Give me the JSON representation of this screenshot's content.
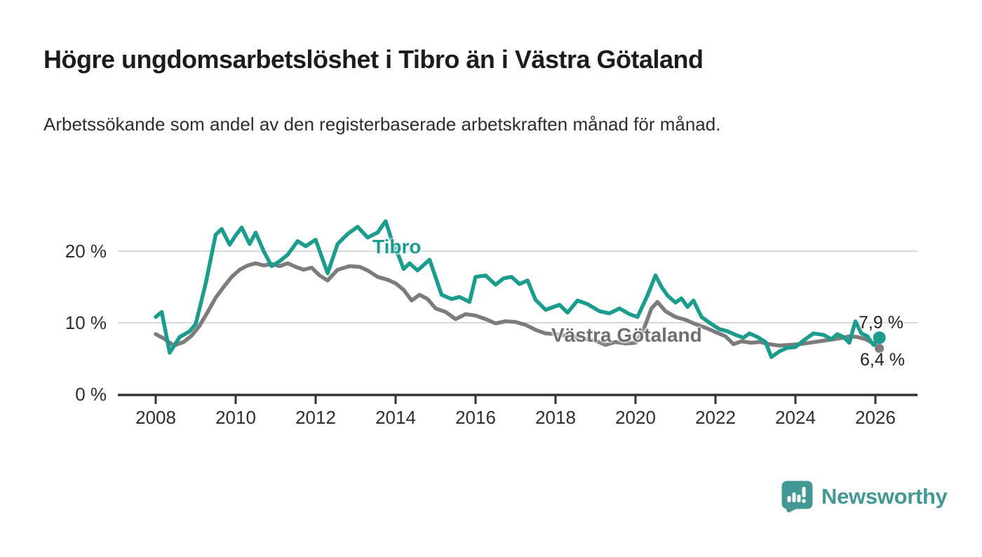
{
  "title": "Högre ungdomsarbetslöshet i Tibro än i Västra Götaland",
  "subtitle": "Arbetssökande som andel av den registerbaserade arbetskraften månad för månad.",
  "brand": {
    "name": "Newsworthy",
    "icon": "newsworthy-speech-bubble-bar-chart-icon",
    "color": "#449893"
  },
  "colors": {
    "tibro_line": "#1b9c8d",
    "vastra_gotaland_line": "#7c7c7c",
    "vastra_gotaland_label": "#6f6f6f",
    "gridline": "#d8d8d8",
    "axis": "#333333",
    "title_text": "#1c1c1c",
    "body_text": "#2d2d2d",
    "annotation_text": "#222222",
    "background": "#ffffff"
  },
  "chart_data": {
    "type": "line",
    "title": "Högre ungdomsarbetslöshet i Tibro än i Västra Götaland",
    "subtitle": "Arbetssökande som andel av den registerbaserade arbetskraften månad för månad.",
    "unit": "%",
    "grid": "horizontal",
    "legend_position": "inline-labels",
    "x_axis": {
      "ticks": [
        2008,
        2010,
        2012,
        2014,
        2016,
        2018,
        2020,
        2022,
        2024,
        2026
      ],
      "range": [
        2007.0,
        2027.0
      ]
    },
    "y_axis": {
      "ticks": [
        0,
        10,
        20
      ],
      "tick_labels": [
        "0 %",
        "10 %",
        "20 %"
      ],
      "range": [
        0,
        25.5
      ]
    },
    "series": [
      {
        "name": "Västra Götaland",
        "color": "#7c7c7c",
        "end_value": 6.4,
        "end_label": "6,4 %",
        "points": [
          [
            2008.0,
            8.4
          ],
          [
            2008.2,
            7.8
          ],
          [
            2008.45,
            6.8
          ],
          [
            2008.7,
            7.3
          ],
          [
            2008.9,
            8.2
          ],
          [
            2009.1,
            9.6
          ],
          [
            2009.3,
            11.5
          ],
          [
            2009.5,
            13.5
          ],
          [
            2009.7,
            15.0
          ],
          [
            2009.9,
            16.4
          ],
          [
            2010.1,
            17.4
          ],
          [
            2010.3,
            18.0
          ],
          [
            2010.5,
            18.3
          ],
          [
            2010.7,
            18.0
          ],
          [
            2010.9,
            18.2
          ],
          [
            2011.1,
            17.9
          ],
          [
            2011.3,
            18.3
          ],
          [
            2011.5,
            17.8
          ],
          [
            2011.7,
            17.4
          ],
          [
            2011.9,
            17.7
          ],
          [
            2012.1,
            16.6
          ],
          [
            2012.3,
            15.9
          ],
          [
            2012.55,
            17.4
          ],
          [
            2012.85,
            17.9
          ],
          [
            2013.1,
            17.8
          ],
          [
            2013.3,
            17.3
          ],
          [
            2013.55,
            16.4
          ],
          [
            2013.8,
            16.0
          ],
          [
            2014.0,
            15.5
          ],
          [
            2014.2,
            14.6
          ],
          [
            2014.4,
            13.1
          ],
          [
            2014.6,
            13.9
          ],
          [
            2014.8,
            13.3
          ],
          [
            2015.0,
            12.0
          ],
          [
            2015.25,
            11.5
          ],
          [
            2015.5,
            10.5
          ],
          [
            2015.75,
            11.2
          ],
          [
            2016.0,
            11.0
          ],
          [
            2016.25,
            10.5
          ],
          [
            2016.5,
            9.9
          ],
          [
            2016.75,
            10.2
          ],
          [
            2017.0,
            10.1
          ],
          [
            2017.25,
            9.7
          ],
          [
            2017.5,
            9.0
          ],
          [
            2017.75,
            8.5
          ],
          [
            2018.0,
            8.4
          ],
          [
            2018.25,
            8.2
          ],
          [
            2018.5,
            8.0
          ],
          [
            2018.75,
            7.7
          ],
          [
            2019.0,
            7.5
          ],
          [
            2019.25,
            6.9
          ],
          [
            2019.5,
            7.3
          ],
          [
            2019.75,
            7.1
          ],
          [
            2020.0,
            7.2
          ],
          [
            2020.2,
            9.0
          ],
          [
            2020.4,
            12.0
          ],
          [
            2020.55,
            12.9
          ],
          [
            2020.75,
            11.6
          ],
          [
            2021.0,
            10.8
          ],
          [
            2021.25,
            10.4
          ],
          [
            2021.5,
            9.8
          ],
          [
            2021.75,
            9.3
          ],
          [
            2022.0,
            8.7
          ],
          [
            2022.25,
            8.1
          ],
          [
            2022.45,
            7.0
          ],
          [
            2022.65,
            7.4
          ],
          [
            2022.9,
            7.2
          ],
          [
            2023.1,
            7.3
          ],
          [
            2023.35,
            7.0
          ],
          [
            2023.6,
            6.8
          ],
          [
            2023.85,
            6.9
          ],
          [
            2024.1,
            7.0
          ],
          [
            2024.35,
            7.2
          ],
          [
            2024.6,
            7.4
          ],
          [
            2024.85,
            7.6
          ],
          [
            2025.1,
            7.8
          ],
          [
            2025.35,
            8.1
          ],
          [
            2025.55,
            8.0
          ],
          [
            2025.75,
            7.7
          ],
          [
            2025.95,
            7.1
          ],
          [
            2026.1,
            6.4
          ]
        ]
      },
      {
        "name": "Tibro",
        "color": "#1b9c8d",
        "end_value": 7.9,
        "end_label": "7,9 %",
        "points": [
          [
            2008.0,
            10.8
          ],
          [
            2008.15,
            11.5
          ],
          [
            2008.35,
            5.8
          ],
          [
            2008.6,
            8.0
          ],
          [
            2008.85,
            8.8
          ],
          [
            2009.0,
            9.8
          ],
          [
            2009.25,
            15.5
          ],
          [
            2009.5,
            22.3
          ],
          [
            2009.65,
            23.1
          ],
          [
            2009.85,
            20.9
          ],
          [
            2010.0,
            22.2
          ],
          [
            2010.15,
            23.3
          ],
          [
            2010.35,
            21.0
          ],
          [
            2010.5,
            22.6
          ],
          [
            2010.7,
            20.0
          ],
          [
            2010.9,
            17.9
          ],
          [
            2011.1,
            18.6
          ],
          [
            2011.3,
            19.5
          ],
          [
            2011.55,
            21.4
          ],
          [
            2011.75,
            20.7
          ],
          [
            2012.0,
            21.6
          ],
          [
            2012.3,
            16.9
          ],
          [
            2012.55,
            21.0
          ],
          [
            2012.8,
            22.4
          ],
          [
            2013.05,
            23.4
          ],
          [
            2013.3,
            21.9
          ],
          [
            2013.55,
            22.6
          ],
          [
            2013.75,
            24.2
          ],
          [
            2013.9,
            21.6
          ],
          [
            2014.1,
            19.0
          ],
          [
            2014.2,
            17.5
          ],
          [
            2014.35,
            18.3
          ],
          [
            2014.55,
            17.3
          ],
          [
            2014.85,
            18.8
          ],
          [
            2015.15,
            13.9
          ],
          [
            2015.4,
            13.3
          ],
          [
            2015.6,
            13.6
          ],
          [
            2015.85,
            12.9
          ],
          [
            2016.0,
            16.4
          ],
          [
            2016.25,
            16.6
          ],
          [
            2016.5,
            15.3
          ],
          [
            2016.7,
            16.2
          ],
          [
            2016.9,
            16.4
          ],
          [
            2017.1,
            15.4
          ],
          [
            2017.3,
            15.9
          ],
          [
            2017.5,
            13.2
          ],
          [
            2017.75,
            11.8
          ],
          [
            2018.1,
            12.5
          ],
          [
            2018.3,
            11.4
          ],
          [
            2018.55,
            13.1
          ],
          [
            2018.8,
            12.6
          ],
          [
            2019.1,
            11.6
          ],
          [
            2019.35,
            11.3
          ],
          [
            2019.6,
            12.0
          ],
          [
            2019.85,
            11.2
          ],
          [
            2020.05,
            10.8
          ],
          [
            2020.3,
            13.8
          ],
          [
            2020.5,
            16.6
          ],
          [
            2020.65,
            15.0
          ],
          [
            2020.8,
            13.8
          ],
          [
            2021.0,
            12.8
          ],
          [
            2021.15,
            13.4
          ],
          [
            2021.3,
            12.2
          ],
          [
            2021.45,
            13.1
          ],
          [
            2021.65,
            10.8
          ],
          [
            2021.85,
            10.0
          ],
          [
            2022.1,
            9.1
          ],
          [
            2022.3,
            8.8
          ],
          [
            2022.5,
            8.3
          ],
          [
            2022.7,
            7.9
          ],
          [
            2022.85,
            8.5
          ],
          [
            2023.05,
            8.0
          ],
          [
            2023.25,
            7.3
          ],
          [
            2023.4,
            5.2
          ],
          [
            2023.6,
            6.0
          ],
          [
            2023.8,
            6.5
          ],
          [
            2024.0,
            6.6
          ],
          [
            2024.2,
            7.5
          ],
          [
            2024.45,
            8.5
          ],
          [
            2024.7,
            8.3
          ],
          [
            2024.9,
            7.7
          ],
          [
            2025.05,
            8.4
          ],
          [
            2025.2,
            8.0
          ],
          [
            2025.35,
            7.2
          ],
          [
            2025.5,
            10.2
          ],
          [
            2025.65,
            8.5
          ],
          [
            2025.8,
            8.1
          ],
          [
            2025.95,
            6.9
          ],
          [
            2026.1,
            7.9
          ]
        ]
      }
    ],
    "annotations": [
      {
        "text": "Tibro",
        "series": "Tibro",
        "color": "#1b9c8d"
      },
      {
        "text": "Västra Götaland",
        "series": "Västra Götaland",
        "color": "#6f6f6f"
      },
      {
        "text": "7,9 %",
        "series": "Tibro",
        "position": "end"
      },
      {
        "text": "6,4 %",
        "series": "Västra Götaland",
        "position": "end"
      }
    ]
  }
}
